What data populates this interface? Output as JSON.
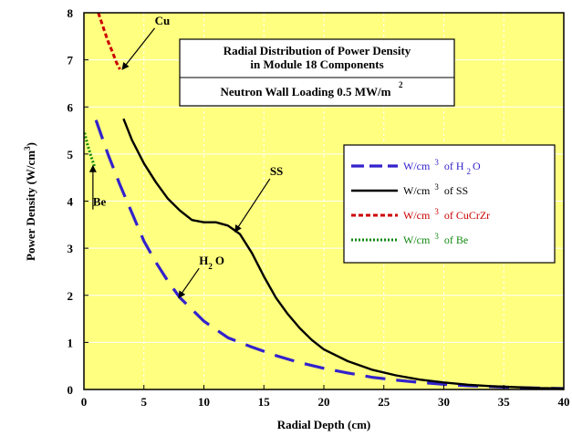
{
  "chart_data": {
    "type": "line",
    "title_lines": [
      "Radial Distribution of Power Density",
      "in Module 18 Components"
    ],
    "subtitle": "Neutron Wall Loading 0.5 MW/m",
    "subtitle_sup": "2",
    "xlabel": "Radial Depth (cm)",
    "ylabel": "Power Density (W/cm",
    "ylabel_sup": "3",
    "ylabel_end": ")",
    "xlim": [
      0,
      40
    ],
    "ylim": [
      0,
      8
    ],
    "xticks": [
      0,
      5,
      10,
      15,
      20,
      25,
      30,
      35,
      40
    ],
    "yticks": [
      0,
      1,
      2,
      3,
      4,
      5,
      6,
      7,
      8
    ],
    "grid": true,
    "legend_position": "right",
    "colors": {
      "plot_background": "#ffff80",
      "grid": "#ffffff",
      "h2o": "#3322cc",
      "ss": "#000000",
      "cucrzr": "#cc0000",
      "be": "#118811"
    },
    "series": [
      {
        "id": "h2o",
        "legend": {
          "pre": "W/cm",
          "sup": "3",
          "mid": " of H",
          "sub": "2",
          "post": "O"
        },
        "color": "#3322cc",
        "dash": "long",
        "x": [
          1.0,
          2.0,
          3.0,
          4.0,
          5.0,
          6.0,
          7.0,
          8.0,
          9.0,
          10.0,
          12.0,
          14.0,
          16.0,
          18.0,
          20.0,
          22.0,
          24.0,
          26.0,
          28.0,
          30.0,
          32.0,
          34.0,
          36.0,
          38.0,
          40.0
        ],
        "y": [
          5.72,
          5.0,
          4.35,
          3.75,
          3.15,
          2.7,
          2.3,
          1.95,
          1.7,
          1.45,
          1.1,
          0.9,
          0.72,
          0.57,
          0.45,
          0.35,
          0.26,
          0.2,
          0.15,
          0.11,
          0.08,
          0.06,
          0.04,
          0.03,
          0.02
        ]
      },
      {
        "id": "ss",
        "legend": {
          "pre": "W/cm",
          "sup": "3",
          "mid": " of SS",
          "sub": "",
          "post": ""
        },
        "color": "#000000",
        "dash": "solid",
        "x": [
          3.3,
          4.0,
          5.0,
          6.0,
          7.0,
          8.0,
          9.0,
          10.0,
          11.0,
          12.0,
          13.0,
          14.0,
          15.0,
          16.0,
          17.0,
          18.0,
          19.0,
          20.0,
          22.0,
          24.0,
          26.0,
          28.0,
          30.0,
          32.0,
          34.0,
          36.0,
          38.0,
          40.0
        ],
        "y": [
          5.75,
          5.3,
          4.8,
          4.4,
          4.05,
          3.8,
          3.6,
          3.55,
          3.55,
          3.48,
          3.3,
          2.9,
          2.4,
          1.95,
          1.6,
          1.3,
          1.05,
          0.85,
          0.6,
          0.42,
          0.3,
          0.21,
          0.15,
          0.1,
          0.07,
          0.05,
          0.03,
          0.02
        ]
      },
      {
        "id": "cucrzr",
        "legend": {
          "pre": "W/cm",
          "sup": "3",
          "mid": " of CuCrZr",
          "sub": "",
          "post": ""
        },
        "color": "#cc0000",
        "dash": "short",
        "x": [
          1.2,
          1.6,
          2.0,
          2.4,
          2.7,
          3.0
        ],
        "y": [
          8.0,
          7.7,
          7.4,
          7.15,
          6.95,
          6.8
        ]
      },
      {
        "id": "be",
        "legend": {
          "pre": "W/cm",
          "sup": "3",
          "mid": " of Be",
          "sub": "",
          "post": ""
        },
        "color": "#118811",
        "dash": "dotted",
        "x": [
          0.05,
          0.3,
          0.6,
          0.9
        ],
        "y": [
          5.45,
          5.2,
          4.95,
          4.72
        ]
      }
    ],
    "annotations": [
      {
        "id": "cu",
        "text": "Cu",
        "sub": "",
        "post": "",
        "x": 5.9,
        "y": 7.75,
        "arrow_to": [
          3.2,
          6.8
        ]
      },
      {
        "id": "ss",
        "text": "SS",
        "sub": "",
        "post": "",
        "x": 15.5,
        "y": 4.55,
        "arrow_to": [
          12.6,
          3.35
        ]
      },
      {
        "id": "be",
        "text": "Be",
        "sub": "",
        "post": "",
        "x": 0.75,
        "y": 3.9,
        "arrow_to": [
          0.75,
          4.75
        ]
      },
      {
        "id": "h2o",
        "text": "H",
        "sub": "2",
        "post": "O",
        "x": 9.6,
        "y": 2.65,
        "arrow_to": [
          7.9,
          1.95
        ]
      }
    ]
  }
}
